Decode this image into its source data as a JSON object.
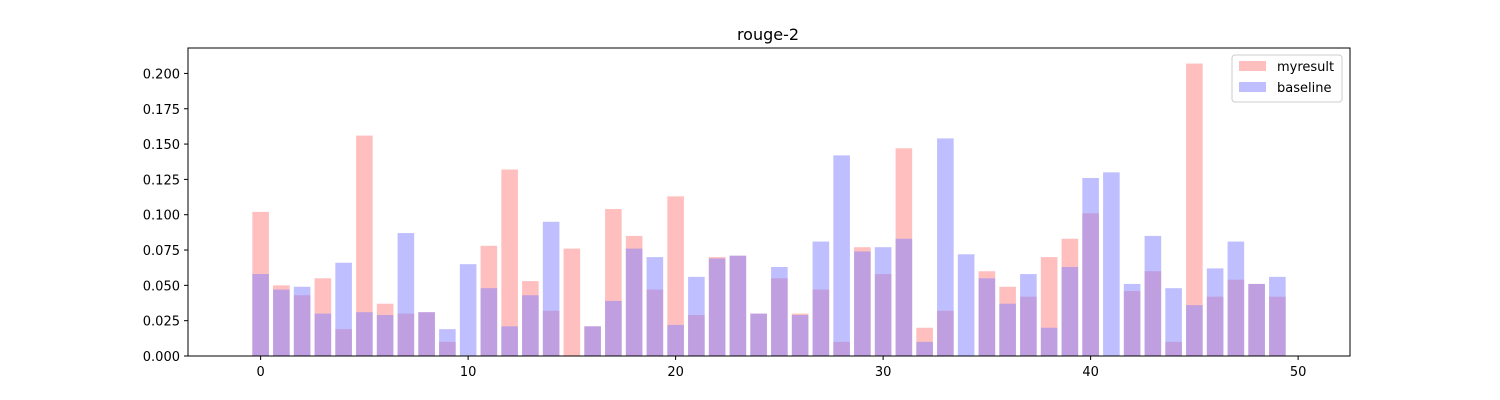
{
  "chart_data": {
    "type": "bar",
    "title": "rouge-2",
    "xlabel": "",
    "ylabel": "",
    "x": [
      0,
      1,
      2,
      3,
      4,
      5,
      6,
      7,
      8,
      9,
      10,
      11,
      12,
      13,
      14,
      15,
      16,
      17,
      18,
      19,
      20,
      21,
      22,
      23,
      24,
      25,
      26,
      27,
      28,
      29,
      30,
      31,
      32,
      33,
      34,
      35,
      36,
      37,
      38,
      39,
      40,
      41,
      42,
      43,
      44,
      45,
      46,
      47,
      48,
      49
    ],
    "xlim": [
      -3.5,
      52.5
    ],
    "ylim": [
      0,
      0.218
    ],
    "xticks": [
      0,
      10,
      20,
      30,
      40,
      50
    ],
    "xtick_labels": [
      "0",
      "10",
      "20",
      "30",
      "40",
      "50"
    ],
    "yticks": [
      0,
      0.025,
      0.05,
      0.075,
      0.1,
      0.125,
      0.15,
      0.175,
      0.2
    ],
    "ytick_labels": [
      "0.000",
      "0.025",
      "0.050",
      "0.075",
      "0.100",
      "0.125",
      "0.150",
      "0.175",
      "0.200"
    ],
    "legend_position": "top-right",
    "grid": false,
    "series": [
      {
        "name": "myresult",
        "color": "#ff7f7f",
        "opacity": 0.5,
        "values": [
          0.102,
          0.05,
          0.043,
          0.055,
          0.019,
          0.156,
          0.037,
          0.03,
          0.031,
          0.01,
          0.0,
          0.078,
          0.132,
          0.053,
          0.032,
          0.076,
          0.021,
          0.104,
          0.085,
          0.047,
          0.113,
          0.029,
          0.07,
          0.071,
          0.03,
          0.055,
          0.03,
          0.047,
          0.01,
          0.077,
          0.058,
          0.147,
          0.02,
          0.032,
          0.0,
          0.06,
          0.049,
          0.042,
          0.07,
          0.083,
          0.101,
          0.0,
          0.046,
          0.06,
          0.01,
          0.207,
          0.042,
          0.054,
          0.051,
          0.042
        ]
      },
      {
        "name": "baseline",
        "color": "#7f7fff",
        "opacity": 0.5,
        "values": [
          0.058,
          0.047,
          0.049,
          0.03,
          0.066,
          0.031,
          0.029,
          0.087,
          0.031,
          0.019,
          0.065,
          0.048,
          0.021,
          0.043,
          0.095,
          0.0,
          0.021,
          0.039,
          0.076,
          0.07,
          0.022,
          0.056,
          0.069,
          0.071,
          0.03,
          0.063,
          0.029,
          0.081,
          0.142,
          0.074,
          0.077,
          0.083,
          0.01,
          0.154,
          0.072,
          0.055,
          0.037,
          0.058,
          0.02,
          0.063,
          0.126,
          0.13,
          0.051,
          0.085,
          0.048,
          0.036,
          0.062,
          0.081,
          0.051,
          0.056
        ]
      }
    ]
  }
}
